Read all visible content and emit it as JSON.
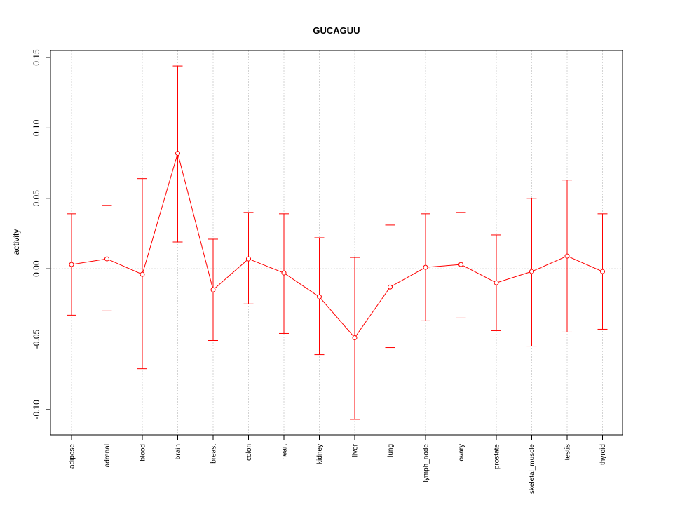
{
  "chart_data": {
    "type": "line",
    "title": "GUCAGUU",
    "xlabel": "",
    "ylabel": "activity",
    "ylim": [
      -0.118,
      0.155
    ],
    "y_ticks": [
      -0.1,
      -0.05,
      0.0,
      0.05,
      0.1,
      0.15
    ],
    "y_tick_labels": [
      "-0.10",
      "-0.05",
      "0.00",
      "0.05",
      "0.10",
      "0.15"
    ],
    "reference_line": 0,
    "grid": true,
    "categories": [
      "adipose",
      "adrenal",
      "blood",
      "brain",
      "breast",
      "colon",
      "heart",
      "kidney",
      "liver",
      "lung",
      "lymph_node",
      "ovary",
      "prostate",
      "skeletal_muscle",
      "testis",
      "thyroid"
    ],
    "series": [
      {
        "name": "activity",
        "color": "#ff0000",
        "values": [
          0.003,
          0.007,
          -0.004,
          0.082,
          -0.015,
          0.007,
          -0.003,
          -0.02,
          -0.049,
          -0.013,
          0.001,
          0.003,
          -0.01,
          -0.002,
          0.009,
          -0.002
        ],
        "upper": [
          0.039,
          0.045,
          0.064,
          0.144,
          0.021,
          0.04,
          0.039,
          0.022,
          0.008,
          0.031,
          0.039,
          0.04,
          0.024,
          0.05,
          0.063,
          0.039
        ],
        "lower": [
          -0.033,
          -0.03,
          -0.071,
          0.019,
          -0.051,
          -0.025,
          -0.046,
          -0.061,
          -0.107,
          -0.056,
          -0.037,
          -0.035,
          -0.044,
          -0.055,
          -0.045,
          -0.043
        ]
      }
    ]
  }
}
